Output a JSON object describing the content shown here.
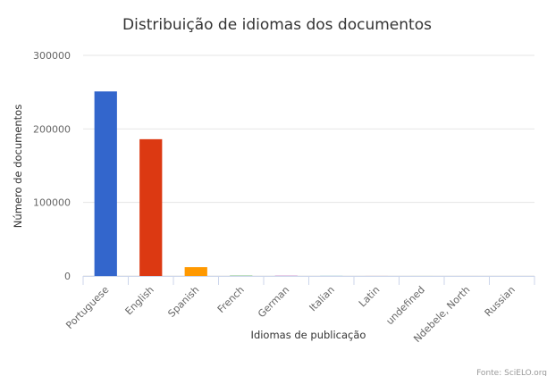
{
  "chart_data": {
    "type": "bar",
    "title": "Distribuição de idiomas dos documentos",
    "x_label": "Idiomas de publicação",
    "y_label": "Número de documentos",
    "credit": "Fonte: SciELO.org",
    "categories": [
      "Portuguese",
      "English",
      "Spanish",
      "French",
      "German",
      "Italian",
      "Latin",
      "undefined",
      "Ndebele, North",
      "Russian"
    ],
    "values": [
      251000,
      186000,
      12000,
      300,
      200,
      100,
      50,
      20,
      10,
      5
    ],
    "colors": [
      "#3366cc",
      "#dc3912",
      "#ff9900",
      "#109618",
      "#990099",
      "#0099c6",
      "#dd4477",
      "#66aa00",
      "#b82e2e",
      "#316395"
    ],
    "ylim": [
      0,
      300000
    ],
    "yticks": [
      0,
      100000,
      200000,
      300000
    ],
    "grid": true
  }
}
